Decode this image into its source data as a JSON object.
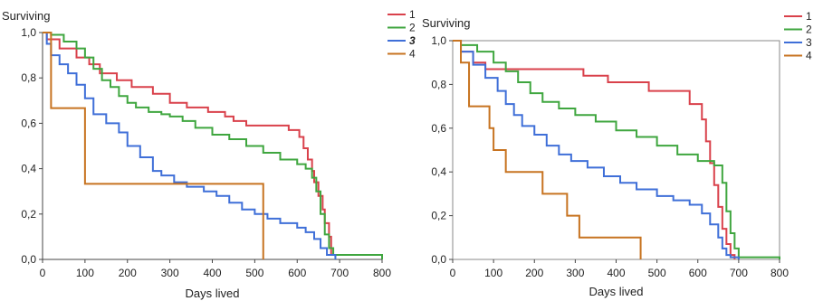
{
  "chart_data": [
    {
      "type": "line",
      "step": true,
      "ylabel": "Surviving",
      "xlabel": "Days lived",
      "xlim": [
        0,
        800
      ],
      "ylim": [
        0,
        1
      ],
      "xticks": [
        "0",
        "100",
        "200",
        "300",
        "400",
        "500",
        "600",
        "700",
        "800"
      ],
      "yticks": [
        "0,0",
        "0,2",
        "0,4",
        "0,6",
        "0,8",
        "1,0"
      ],
      "grid": false,
      "legend_position": "top-right",
      "highlighted_series": "3",
      "series": [
        {
          "name": "1",
          "color": "#d9414b",
          "x": [
            0,
            10,
            40,
            80,
            110,
            135,
            175,
            210,
            260,
            300,
            340,
            390,
            430,
            450,
            480,
            580,
            605,
            615,
            625,
            635,
            640,
            650,
            660,
            665,
            675,
            680,
            690
          ],
          "y": [
            1.0,
            0.97,
            0.93,
            0.89,
            0.86,
            0.82,
            0.79,
            0.76,
            0.73,
            0.69,
            0.67,
            0.65,
            0.63,
            0.61,
            0.59,
            0.57,
            0.54,
            0.49,
            0.44,
            0.39,
            0.34,
            0.28,
            0.22,
            0.16,
            0.1,
            0.02,
            0.01
          ]
        },
        {
          "name": "2",
          "color": "#3fa63f",
          "x": [
            0,
            20,
            50,
            80,
            100,
            120,
            140,
            160,
            180,
            200,
            220,
            250,
            280,
            300,
            330,
            360,
            400,
            440,
            480,
            520,
            560,
            600,
            620,
            635,
            645,
            655,
            665,
            675,
            685,
            800
          ],
          "y": [
            1.0,
            0.99,
            0.96,
            0.93,
            0.89,
            0.84,
            0.79,
            0.76,
            0.72,
            0.69,
            0.67,
            0.65,
            0.64,
            0.63,
            0.61,
            0.58,
            0.55,
            0.53,
            0.5,
            0.47,
            0.44,
            0.42,
            0.4,
            0.36,
            0.3,
            0.2,
            0.11,
            0.05,
            0.02,
            0.0
          ]
        },
        {
          "name": "3",
          "color": "#3f6fd8",
          "x": [
            0,
            10,
            20,
            40,
            60,
            80,
            100,
            120,
            150,
            180,
            200,
            230,
            260,
            280,
            310,
            340,
            380,
            410,
            440,
            470,
            500,
            530,
            560,
            600,
            620,
            640,
            655,
            670,
            690
          ],
          "y": [
            1.0,
            0.95,
            0.9,
            0.86,
            0.82,
            0.77,
            0.71,
            0.64,
            0.6,
            0.56,
            0.5,
            0.45,
            0.39,
            0.37,
            0.34,
            0.32,
            0.3,
            0.28,
            0.25,
            0.22,
            0.2,
            0.18,
            0.16,
            0.14,
            0.12,
            0.09,
            0.05,
            0.02,
            0.0
          ]
        },
        {
          "name": "4",
          "color": "#c77320",
          "x": [
            0,
            20,
            100,
            520,
            520
          ],
          "y": [
            1.0,
            0.667,
            0.333,
            0.333,
            0.0
          ]
        }
      ]
    },
    {
      "type": "line",
      "step": true,
      "ylabel": "Surviving",
      "xlabel": "Days lived",
      "xlim": [
        0,
        800
      ],
      "ylim": [
        0,
        1
      ],
      "xticks": [
        "0",
        "100",
        "200",
        "300",
        "400",
        "500",
        "600",
        "700",
        "800"
      ],
      "yticks": [
        "0,0",
        "0,2",
        "0,4",
        "0,6",
        "0,8",
        "1,0"
      ],
      "grid": false,
      "legend_position": "top-right",
      "series": [
        {
          "name": "1",
          "color": "#d9414b",
          "x": [
            0,
            20,
            50,
            80,
            320,
            380,
            480,
            580,
            610,
            620,
            630,
            640,
            650,
            660,
            670,
            680,
            690
          ],
          "y": [
            1.0,
            0.95,
            0.9,
            0.87,
            0.84,
            0.81,
            0.77,
            0.71,
            0.64,
            0.54,
            0.44,
            0.34,
            0.24,
            0.14,
            0.07,
            0.02,
            0.0
          ]
        },
        {
          "name": "2",
          "color": "#3fa63f",
          "x": [
            0,
            20,
            60,
            100,
            130,
            160,
            190,
            220,
            260,
            300,
            350,
            400,
            450,
            500,
            550,
            600,
            640,
            660,
            670,
            680,
            690,
            700,
            800
          ],
          "y": [
            1.0,
            0.98,
            0.95,
            0.9,
            0.86,
            0.81,
            0.76,
            0.72,
            0.69,
            0.66,
            0.63,
            0.59,
            0.56,
            0.52,
            0.48,
            0.45,
            0.43,
            0.35,
            0.22,
            0.12,
            0.05,
            0.01,
            0.0
          ]
        },
        {
          "name": "3",
          "color": "#3f6fd8",
          "x": [
            0,
            20,
            50,
            80,
            110,
            130,
            150,
            170,
            200,
            230,
            260,
            290,
            330,
            370,
            410,
            450,
            500,
            540,
            580,
            610,
            630,
            650,
            660,
            670,
            680,
            700
          ],
          "y": [
            1.0,
            0.95,
            0.89,
            0.83,
            0.77,
            0.71,
            0.66,
            0.61,
            0.57,
            0.52,
            0.48,
            0.45,
            0.42,
            0.38,
            0.35,
            0.32,
            0.29,
            0.27,
            0.25,
            0.21,
            0.16,
            0.1,
            0.05,
            0.02,
            0.01,
            0.0
          ]
        },
        {
          "name": "4",
          "color": "#c77320",
          "x": [
            0,
            20,
            40,
            90,
            100,
            130,
            220,
            280,
            310,
            460,
            460
          ],
          "y": [
            1.0,
            0.9,
            0.7,
            0.6,
            0.5,
            0.4,
            0.3,
            0.2,
            0.1,
            0.1,
            0.0
          ]
        }
      ]
    }
  ]
}
